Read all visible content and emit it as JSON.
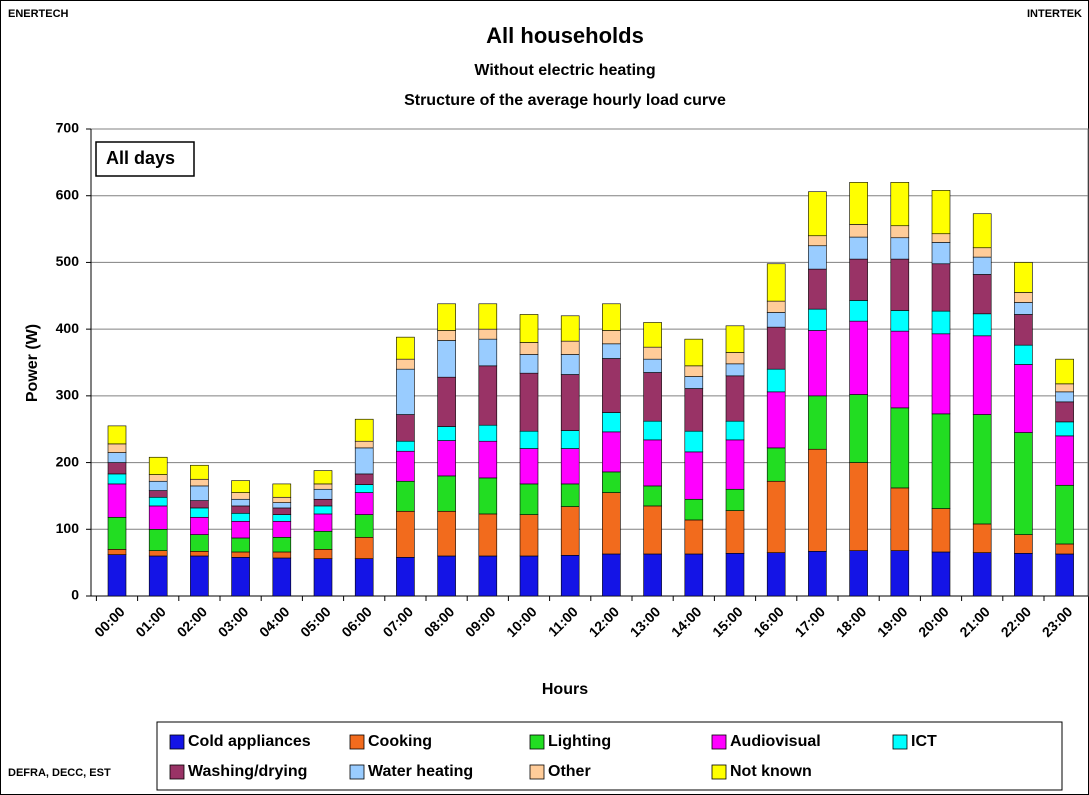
{
  "chart_data": {
    "type": "stacked_bar",
    "corner_left": "ENERTECH",
    "corner_right": "INTERTEK",
    "source": "DEFRA, DECC, EST",
    "title": "All households",
    "subtitle": "Without electric heating",
    "subtitle2": "Structure of the average hourly load curve",
    "annotation": "All days",
    "y_label": "Power (W)",
    "x_label": "Hours",
    "ylim": [
      0,
      700
    ],
    "yticks": [
      0,
      100,
      200,
      300,
      400,
      500,
      600,
      700
    ],
    "grid": true,
    "categories": [
      "00:00",
      "01:00",
      "02:00",
      "03:00",
      "04:00",
      "05:00",
      "06:00",
      "07:00",
      "08:00",
      "09:00",
      "10:00",
      "11:00",
      "12:00",
      "13:00",
      "14:00",
      "15:00",
      "16:00",
      "17:00",
      "18:00",
      "19:00",
      "20:00",
      "21:00",
      "22:00",
      "23:00"
    ],
    "series": [
      {
        "name": "Cold appliances",
        "color": "#1414e6",
        "values": [
          62,
          60,
          60,
          58,
          57,
          56,
          56,
          58,
          60,
          60,
          60,
          61,
          63,
          63,
          63,
          64,
          65,
          67,
          68,
          68,
          66,
          65,
          64,
          63
        ]
      },
      {
        "name": "Cooking",
        "color": "#f26b1d",
        "values": [
          8,
          8,
          7,
          8,
          9,
          14,
          32,
          69,
          67,
          63,
          62,
          73,
          92,
          72,
          51,
          64,
          107,
          153,
          132,
          94,
          65,
          43,
          28,
          15
        ]
      },
      {
        "name": "Lighting",
        "color": "#22dd22",
        "values": [
          48,
          32,
          25,
          21,
          22,
          27,
          34,
          45,
          53,
          54,
          46,
          34,
          31,
          30,
          31,
          32,
          50,
          80,
          102,
          120,
          142,
          164,
          153,
          88
        ]
      },
      {
        "name": "Audiovisual",
        "color": "#ff00ff",
        "values": [
          50,
          35,
          26,
          25,
          24,
          26,
          33,
          45,
          53,
          55,
          53,
          53,
          60,
          69,
          71,
          74,
          84,
          98,
          110,
          115,
          120,
          118,
          102,
          74
        ]
      },
      {
        "name": "ICT",
        "color": "#00ffff",
        "values": [
          15,
          13,
          14,
          12,
          10,
          12,
          12,
          15,
          21,
          24,
          26,
          27,
          29,
          28,
          31,
          28,
          34,
          32,
          31,
          31,
          34,
          33,
          29,
          21
        ]
      },
      {
        "name": "Washing/drying",
        "color": "#993366",
        "values": [
          17,
          10,
          11,
          11,
          10,
          10,
          16,
          40,
          74,
          89,
          87,
          84,
          81,
          73,
          64,
          68,
          63,
          60,
          62,
          77,
          71,
          59,
          46,
          30
        ]
      },
      {
        "name": "Water heating",
        "color": "#99ccff",
        "values": [
          15,
          14,
          22,
          10,
          8,
          15,
          39,
          68,
          55,
          40,
          28,
          30,
          22,
          20,
          18,
          18,
          22,
          35,
          33,
          32,
          32,
          26,
          18,
          15
        ]
      },
      {
        "name": "Other",
        "color": "#ffcc99",
        "values": [
          13,
          10,
          10,
          10,
          8,
          8,
          10,
          15,
          15,
          15,
          18,
          20,
          20,
          18,
          16,
          17,
          17,
          15,
          19,
          18,
          13,
          14,
          15,
          12
        ]
      },
      {
        "name": "Not known",
        "color": "#ffff00",
        "values": [
          27,
          26,
          21,
          18,
          20,
          20,
          33,
          33,
          40,
          38,
          42,
          38,
          40,
          37,
          40,
          40,
          56,
          66,
          63,
          65,
          65,
          51,
          45,
          37
        ]
      }
    ]
  }
}
